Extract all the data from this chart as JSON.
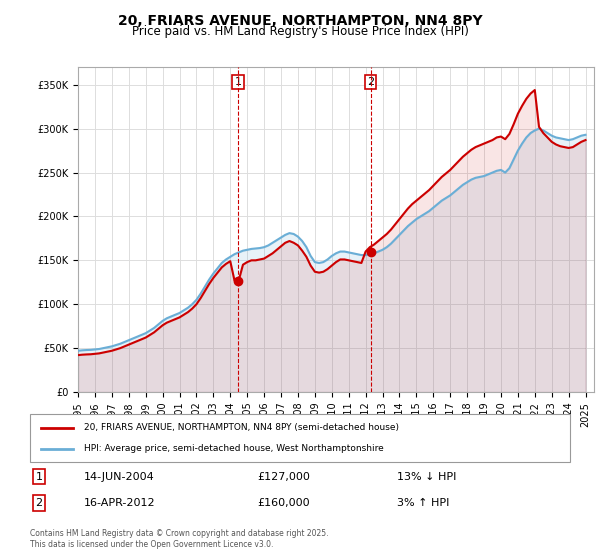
{
  "title": "20, FRIARS AVENUE, NORTHAMPTON, NN4 8PY",
  "subtitle": "Price paid vs. HM Land Registry's House Price Index (HPI)",
  "ylabel_ticks": [
    "£0",
    "£50K",
    "£100K",
    "£150K",
    "£200K",
    "£250K",
    "£300K",
    "£350K"
  ],
  "ytick_values": [
    0,
    50000,
    100000,
    150000,
    200000,
    250000,
    300000,
    350000
  ],
  "ylim": [
    0,
    370000
  ],
  "xlim_start": 1995,
  "xlim_end": 2025.5,
  "background_color": "#ffffff",
  "plot_bg_color": "#ffffff",
  "grid_color": "#dddddd",
  "legend1_label": "20, FRIARS AVENUE, NORTHAMPTON, NN4 8PY (semi-detached house)",
  "legend2_label": "HPI: Average price, semi-detached house, West Northamptonshire",
  "sale1_date": "14-JUN-2004",
  "sale1_price": "£127,000",
  "sale1_hpi": "13% ↓ HPI",
  "sale2_date": "16-APR-2012",
  "sale2_price": "£160,000",
  "sale2_hpi": "3% ↑ HPI",
  "footer": "Contains HM Land Registry data © Crown copyright and database right 2025.\nThis data is licensed under the Open Government Licence v3.0.",
  "hpi_color": "#6aaed6",
  "price_color": "#cc0000",
  "marker1_x": 2004.45,
  "marker1_y": 127000,
  "marker2_x": 2012.29,
  "marker2_y": 160000,
  "vline1_x": 2004.45,
  "vline2_x": 2012.29,
  "hpi_data": {
    "years": [
      1995.0,
      1995.25,
      1995.5,
      1995.75,
      1996.0,
      1996.25,
      1996.5,
      1996.75,
      1997.0,
      1997.25,
      1997.5,
      1997.75,
      1998.0,
      1998.25,
      1998.5,
      1998.75,
      1999.0,
      1999.25,
      1999.5,
      1999.75,
      2000.0,
      2000.25,
      2000.5,
      2000.75,
      2001.0,
      2001.25,
      2001.5,
      2001.75,
      2002.0,
      2002.25,
      2002.5,
      2002.75,
      2003.0,
      2003.25,
      2003.5,
      2003.75,
      2004.0,
      2004.25,
      2004.5,
      2004.75,
      2005.0,
      2005.25,
      2005.5,
      2005.75,
      2006.0,
      2006.25,
      2006.5,
      2006.75,
      2007.0,
      2007.25,
      2007.5,
      2007.75,
      2008.0,
      2008.25,
      2008.5,
      2008.75,
      2009.0,
      2009.25,
      2009.5,
      2009.75,
      2010.0,
      2010.25,
      2010.5,
      2010.75,
      2011.0,
      2011.25,
      2011.5,
      2011.75,
      2012.0,
      2012.25,
      2012.5,
      2012.75,
      2013.0,
      2013.25,
      2013.5,
      2013.75,
      2014.0,
      2014.25,
      2014.5,
      2014.75,
      2015.0,
      2015.25,
      2015.5,
      2015.75,
      2016.0,
      2016.25,
      2016.5,
      2016.75,
      2017.0,
      2017.25,
      2017.5,
      2017.75,
      2018.0,
      2018.25,
      2018.5,
      2018.75,
      2019.0,
      2019.25,
      2019.5,
      2019.75,
      2020.0,
      2020.25,
      2020.5,
      2020.75,
      2021.0,
      2021.25,
      2021.5,
      2021.75,
      2022.0,
      2022.25,
      2022.5,
      2022.75,
      2023.0,
      2023.25,
      2023.5,
      2023.75,
      2024.0,
      2024.25,
      2024.5,
      2024.75,
      2025.0
    ],
    "values": [
      47000,
      47500,
      47800,
      48000,
      48500,
      49000,
      50000,
      51000,
      52000,
      53500,
      55000,
      57000,
      59000,
      61000,
      63000,
      65000,
      67000,
      70000,
      73000,
      77000,
      81000,
      84000,
      86000,
      88000,
      90000,
      93000,
      96000,
      100000,
      105000,
      112000,
      120000,
      128000,
      135000,
      141000,
      147000,
      151000,
      154000,
      157000,
      159000,
      161000,
      162000,
      163000,
      163500,
      164000,
      165000,
      167000,
      170000,
      173000,
      176000,
      179000,
      181000,
      180000,
      177000,
      172000,
      165000,
      155000,
      148000,
      147000,
      148000,
      151000,
      155000,
      158000,
      160000,
      160000,
      159000,
      158000,
      157000,
      156000,
      156000,
      157000,
      158000,
      160000,
      162000,
      165000,
      169000,
      174000,
      179000,
      184000,
      189000,
      193000,
      197000,
      200000,
      203000,
      206000,
      210000,
      214000,
      218000,
      221000,
      224000,
      228000,
      232000,
      236000,
      239000,
      242000,
      244000,
      245000,
      246000,
      248000,
      250000,
      252000,
      253000,
      250000,
      255000,
      265000,
      275000,
      283000,
      290000,
      295000,
      298000,
      300000,
      298000,
      295000,
      292000,
      290000,
      289000,
      288000,
      287000,
      288000,
      290000,
      292000,
      293000
    ]
  },
  "price_data": {
    "years": [
      1995.0,
      1995.25,
      1995.5,
      1995.75,
      1996.0,
      1996.25,
      1996.5,
      1996.75,
      1997.0,
      1997.25,
      1997.5,
      1997.75,
      1998.0,
      1998.25,
      1998.5,
      1998.75,
      1999.0,
      1999.25,
      1999.5,
      1999.75,
      2000.0,
      2000.25,
      2000.5,
      2000.75,
      2001.0,
      2001.25,
      2001.5,
      2001.75,
      2002.0,
      2002.25,
      2002.5,
      2002.75,
      2003.0,
      2003.25,
      2003.5,
      2003.75,
      2004.0,
      2004.25,
      2004.5,
      2004.75,
      2005.0,
      2005.25,
      2005.5,
      2005.75,
      2006.0,
      2006.25,
      2006.5,
      2006.75,
      2007.0,
      2007.25,
      2007.5,
      2007.75,
      2008.0,
      2008.25,
      2008.5,
      2008.75,
      2009.0,
      2009.25,
      2009.5,
      2009.75,
      2010.0,
      2010.25,
      2010.5,
      2010.75,
      2011.0,
      2011.25,
      2011.5,
      2011.75,
      2012.0,
      2012.25,
      2012.5,
      2012.75,
      2013.0,
      2013.25,
      2013.5,
      2013.75,
      2014.0,
      2014.25,
      2014.5,
      2014.75,
      2015.0,
      2015.25,
      2015.5,
      2015.75,
      2016.0,
      2016.25,
      2016.5,
      2016.75,
      2017.0,
      2017.25,
      2017.5,
      2017.75,
      2018.0,
      2018.25,
      2018.5,
      2018.75,
      2019.0,
      2019.25,
      2019.5,
      2019.75,
      2020.0,
      2020.25,
      2020.5,
      2020.75,
      2021.0,
      2021.25,
      2021.5,
      2021.75,
      2022.0,
      2022.25,
      2022.5,
      2022.75,
      2023.0,
      2023.25,
      2023.5,
      2023.75,
      2024.0,
      2024.25,
      2024.5,
      2024.75,
      2025.0
    ],
    "values": [
      42000,
      42500,
      42800,
      43000,
      43500,
      44000,
      45000,
      46000,
      47000,
      48500,
      50000,
      52000,
      54000,
      56000,
      58000,
      60000,
      62000,
      65000,
      68000,
      72000,
      76000,
      79000,
      81000,
      83000,
      85000,
      88000,
      91000,
      95000,
      100000,
      107000,
      115000,
      123000,
      130000,
      136000,
      142000,
      146000,
      149000,
      127000,
      127000,
      145000,
      148000,
      150000,
      150000,
      151000,
      152000,
      155000,
      158000,
      162000,
      166000,
      170000,
      172000,
      170000,
      167000,
      161000,
      154000,
      144000,
      137000,
      136000,
      137000,
      140000,
      144000,
      148000,
      151000,
      151000,
      150000,
      149000,
      148000,
      147000,
      160000,
      165000,
      168000,
      172000,
      176000,
      180000,
      185000,
      191000,
      197000,
      203000,
      209000,
      214000,
      218000,
      222000,
      226000,
      230000,
      235000,
      240000,
      245000,
      249000,
      253000,
      258000,
      263000,
      268000,
      272000,
      276000,
      279000,
      281000,
      283000,
      285000,
      287000,
      290000,
      291000,
      288000,
      294000,
      305000,
      317000,
      326000,
      334000,
      340000,
      344000,
      302000,
      295000,
      290000,
      285000,
      282000,
      280000,
      279000,
      278000,
      279000,
      282000,
      285000,
      287000
    ]
  }
}
